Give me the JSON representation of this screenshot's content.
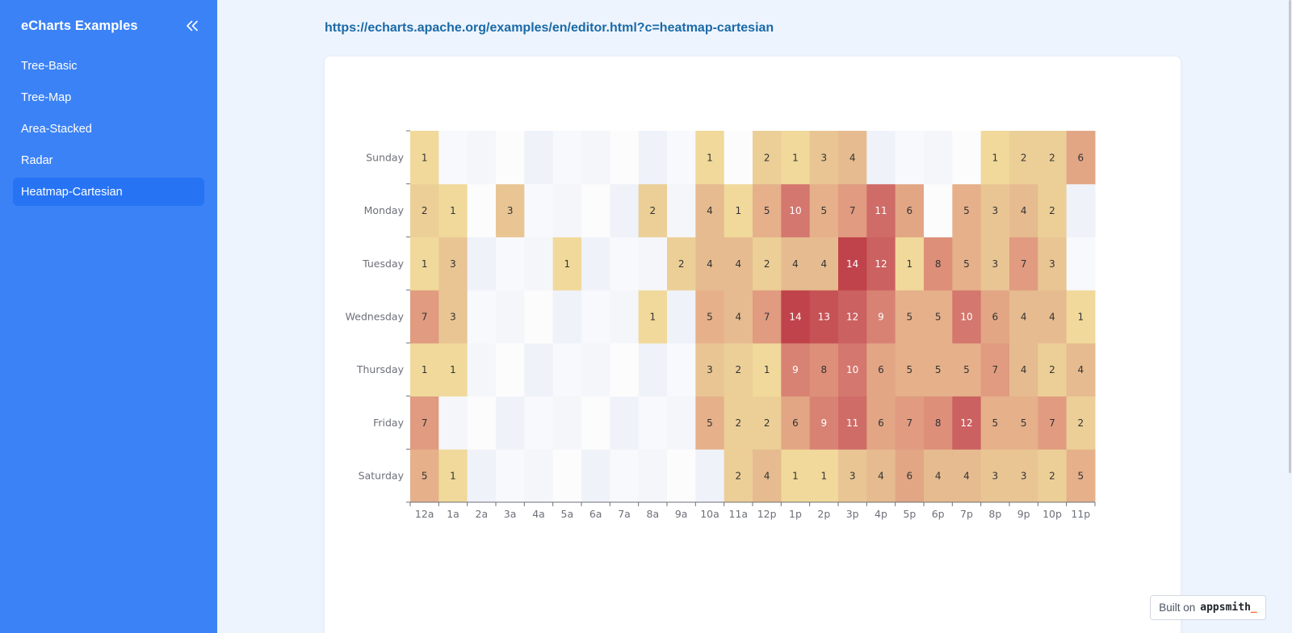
{
  "sidebar": {
    "title": "eCharts Examples",
    "collapse_icon": "double-chevron-left-icon",
    "items": [
      {
        "label": "Tree-Basic",
        "active": false
      },
      {
        "label": "Tree-Map",
        "active": false
      },
      {
        "label": "Area-Stacked",
        "active": false
      },
      {
        "label": "Radar",
        "active": false
      },
      {
        "label": "Heatmap-Cartesian",
        "active": true
      }
    ]
  },
  "main": {
    "url": "https://echarts.apache.org/examples/en/editor.html?c=heatmap-cartesian"
  },
  "badge": {
    "prefix": "Built on",
    "brand": "appsmith",
    "cursor": "_"
  },
  "colors": {
    "sidebar_bg": "#3b82f6",
    "sidebar_active": "#2673f4",
    "page_bg": "#eef4fe",
    "link": "#1a6aa6",
    "brand_accent": "#f86a2b"
  },
  "chart_data": {
    "type": "heatmap",
    "title": "",
    "xlabel": "",
    "ylabel": "",
    "x_categories": [
      "12a",
      "1a",
      "2a",
      "3a",
      "4a",
      "5a",
      "6a",
      "7a",
      "8a",
      "9a",
      "10a",
      "11a",
      "12p",
      "1p",
      "2p",
      "3p",
      "4p",
      "5p",
      "6p",
      "7p",
      "8p",
      "9p",
      "10p",
      "11p"
    ],
    "y_categories": [
      "Saturday",
      "Friday",
      "Thursday",
      "Wednesday",
      "Tuesday",
      "Monday",
      "Sunday"
    ],
    "value_range": [
      0,
      14
    ],
    "color_scale": [
      "#f0d99a",
      "#e8c393",
      "#e4ad88",
      "#df957d",
      "#d57a70",
      "#cc6462",
      "#c0434b"
    ],
    "show_value_labels": true,
    "values_by_day": {
      "Sunday": [
        1,
        0,
        0,
        0,
        0,
        0,
        0,
        0,
        0,
        0,
        1,
        0,
        2,
        1,
        3,
        4,
        0,
        0,
        0,
        0,
        1,
        2,
        2,
        6
      ],
      "Monday": [
        2,
        1,
        0,
        3,
        0,
        0,
        0,
        0,
        2,
        0,
        4,
        1,
        5,
        10,
        5,
        7,
        11,
        6,
        0,
        5,
        3,
        4,
        2,
        0
      ],
      "Tuesday": [
        1,
        3,
        0,
        0,
        0,
        1,
        0,
        0,
        0,
        2,
        4,
        4,
        2,
        4,
        4,
        14,
        12,
        1,
        8,
        5,
        3,
        7,
        3,
        0
      ],
      "Wednesday": [
        7,
        3,
        0,
        0,
        0,
        0,
        0,
        0,
        1,
        0,
        5,
        4,
        7,
        14,
        13,
        12,
        9,
        5,
        5,
        10,
        6,
        4,
        4,
        1
      ],
      "Thursday": [
        1,
        1,
        0,
        0,
        0,
        0,
        0,
        0,
        0,
        0,
        3,
        2,
        1,
        9,
        8,
        10,
        6,
        5,
        5,
        5,
        7,
        4,
        2,
        4
      ],
      "Friday": [
        7,
        0,
        0,
        0,
        0,
        0,
        0,
        0,
        0,
        0,
        5,
        2,
        2,
        6,
        9,
        11,
        6,
        7,
        8,
        12,
        5,
        5,
        7,
        2
      ],
      "Saturday": [
        5,
        1,
        0,
        0,
        0,
        0,
        0,
        0,
        0,
        0,
        0,
        2,
        4,
        1,
        1,
        3,
        4,
        6,
        4,
        4,
        3,
        3,
        2,
        5
      ]
    },
    "grid": false,
    "legend": "none"
  }
}
